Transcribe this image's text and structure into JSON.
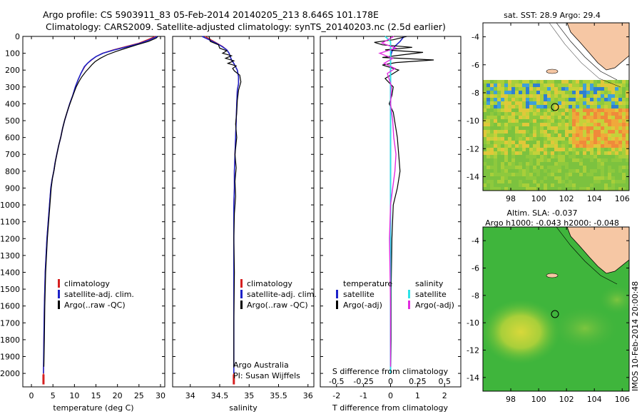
{
  "titles": {
    "line1": "Argo profile: CS 5903911_83 05-Feb-2014 20140205_213 8.646S 101.178E",
    "line2": "Climatology: CARS2009. Satellite-adjusted climatology: synTS_20140203.nc (2.5d earlier)"
  },
  "colors": {
    "climatology": "#d62020",
    "satellite": "#1d22c8",
    "argo": "#000000",
    "sat_salinity": "#2de3e8",
    "argo_salinity": "#e22ce0",
    "land": "#f6c7a4",
    "ocean_bg": "#3fb53c"
  },
  "chart_data": [
    {
      "type": "line",
      "panel": "temperature",
      "xlabel": "temperature (deg C)",
      "xlim": [
        -2,
        31
      ],
      "ylim": [
        0,
        2080
      ],
      "xticks": [
        0,
        5,
        10,
        15,
        20,
        25,
        30
      ],
      "yticks": [
        0,
        100,
        200,
        300,
        400,
        500,
        600,
        700,
        800,
        900,
        1000,
        1100,
        1200,
        1300,
        1400,
        1500,
        1600,
        1700,
        1800,
        1900,
        2000
      ],
      "legend": [
        "climatology",
        "satellite-adj. clim.",
        "Argo(..raw -QC)"
      ],
      "series": [
        {
          "name": "climatology",
          "x": [
            28.8,
            27,
            25,
            22,
            19,
            16.5,
            15,
            14,
            13,
            12.4,
            11.5,
            10.8,
            10.2,
            9.6,
            8.9,
            8.3,
            7.7,
            7.2,
            6.8,
            6.3,
            5.9,
            5.5,
            5.2,
            4.8,
            4.5,
            4.2,
            3.9,
            3.6,
            3.4,
            3.2,
            3.0,
            2.9,
            2.8
          ],
          "y": [
            0,
            20,
            40,
            60,
            80,
            100,
            120,
            140,
            160,
            180,
            220,
            260,
            300,
            350,
            400,
            450,
            500,
            550,
            600,
            650,
            700,
            750,
            800,
            850,
            900,
            1000,
            1100,
            1200,
            1300,
            1400,
            1600,
            1800,
            2040
          ]
        },
        {
          "name": "satellite-adj. clim.",
          "x": [
            29.3,
            27.5,
            25.4,
            22.5,
            19.3,
            16.6,
            15,
            13.9,
            13,
            12.3,
            11.5,
            10.8,
            10.2,
            9.6,
            8.9,
            8.3,
            7.7,
            7.2,
            6.8,
            6.3,
            5.9,
            5.5,
            5.2,
            4.8,
            4.5,
            4.2,
            3.9,
            3.6,
            3.4,
            3.2,
            3.0,
            2.9,
            2.8
          ],
          "y": [
            0,
            20,
            40,
            60,
            80,
            100,
            120,
            140,
            160,
            180,
            220,
            260,
            300,
            350,
            400,
            450,
            500,
            550,
            600,
            650,
            700,
            750,
            800,
            850,
            900,
            1000,
            1100,
            1200,
            1300,
            1400,
            1600,
            1800,
            2000
          ]
        },
        {
          "name": "Argo",
          "x": [
            29.4,
            29.0,
            27.2,
            24.5,
            22.0,
            19.6,
            17.5,
            16,
            14.8,
            14.0,
            13.3,
            12.6,
            11.7,
            11.0,
            10.4,
            9.8,
            9.1,
            8.4,
            7.8,
            7.3,
            6.9,
            6.4,
            6.0,
            5.6,
            5.3,
            4.9,
            4.6,
            4.3,
            4.0,
            3.7,
            3.5,
            3.3,
            3.1,
            3.0,
            2.9
          ],
          "y": [
            0,
            10,
            30,
            50,
            70,
            90,
            110,
            130,
            150,
            170,
            190,
            210,
            240,
            270,
            300,
            340,
            390,
            440,
            490,
            540,
            590,
            640,
            690,
            740,
            790,
            840,
            900,
            1000,
            1100,
            1200,
            1300,
            1400,
            1600,
            1800,
            1960
          ]
        }
      ]
    },
    {
      "type": "line",
      "panel": "salinity",
      "xlabel": "salinity",
      "xlim": [
        33.7,
        36.1
      ],
      "ylim": [
        0,
        2080
      ],
      "xticks": [
        34,
        34.5,
        35,
        35.5,
        36
      ],
      "legend": [
        "climatology",
        "satellite-adj. clim.",
        "Argo(..raw -QC)"
      ],
      "annotations": [
        "Argo Australia",
        "PI: Susan Wijffels"
      ],
      "series": [
        {
          "name": "climatology",
          "x": [
            34.25,
            34.35,
            34.45,
            34.55,
            34.62,
            34.66,
            34.68,
            34.7,
            34.74,
            34.8,
            34.82,
            34.82,
            34.8,
            34.79,
            34.78,
            34.77,
            34.76,
            34.75,
            34.75,
            34.74,
            34.74,
            34.74,
            34.74,
            34.74,
            34.74
          ],
          "y": [
            0,
            20,
            40,
            60,
            80,
            100,
            120,
            140,
            160,
            200,
            240,
            280,
            320,
            400,
            500,
            600,
            700,
            800,
            900,
            1000,
            1200,
            1400,
            1600,
            1800,
            2040
          ]
        },
        {
          "name": "satellite-adj. clim.",
          "x": [
            34.2,
            34.32,
            34.44,
            34.54,
            34.62,
            34.66,
            34.68,
            34.7,
            34.74,
            34.8,
            34.82,
            34.82,
            34.8,
            34.79,
            34.78,
            34.77,
            34.76,
            34.75,
            34.75,
            34.74,
            34.74,
            34.74,
            34.74,
            34.74,
            34.74
          ],
          "y": [
            0,
            20,
            40,
            60,
            80,
            100,
            120,
            140,
            160,
            200,
            240,
            280,
            320,
            400,
            500,
            600,
            700,
            800,
            900,
            1000,
            1200,
            1400,
            1600,
            1800,
            2000
          ]
        },
        {
          "name": "Argo",
          "x": [
            34.32,
            34.34,
            34.48,
            34.5,
            34.62,
            34.55,
            34.7,
            34.6,
            34.74,
            34.64,
            34.78,
            34.72,
            34.75,
            34.84,
            34.86,
            34.82,
            34.8,
            34.79,
            34.77,
            34.79,
            34.76,
            34.78,
            34.76,
            34.77,
            34.75,
            34.74,
            34.75,
            34.74,
            34.74
          ],
          "y": [
            0,
            30,
            50,
            70,
            85,
            100,
            115,
            130,
            145,
            160,
            175,
            190,
            205,
            230,
            270,
            320,
            380,
            450,
            520,
            600,
            700,
            780,
            860,
            950,
            1050,
            1200,
            1400,
            1700,
            1960
          ]
        }
      ]
    },
    {
      "type": "line",
      "panel": "difference",
      "xlabel": "T difference from climatology",
      "xlabel_top": "S difference from climatology",
      "xlim": [
        -2.6,
        2.6
      ],
      "ylim": [
        0,
        2080
      ],
      "xticks": [
        -2,
        -1,
        0,
        1,
        2
      ],
      "xticks_s": [
        "-0.5",
        "-0.25",
        "0",
        "0.25",
        "0.5"
      ],
      "legend_left": [
        "temperature",
        "satellite",
        "Argo(-adj)"
      ],
      "legend_right": [
        "salinity",
        "satellite",
        "Argo(-adj)"
      ],
      "series": [
        {
          "name": "T satellite",
          "x": [
            0.5,
            0.35,
            0.15,
            0.05,
            0,
            0,
            0,
            0,
            0,
            0,
            0,
            0
          ],
          "y": [
            0,
            30,
            60,
            90,
            120,
            200,
            400,
            800,
            1200,
            1600,
            1800,
            2000
          ]
        },
        {
          "name": "T Argo",
          "x": [
            0.6,
            0.1,
            -0.6,
            -0.3,
            0.8,
            -0.2,
            1.2,
            0.4,
            -0.3,
            1.6,
            0.2,
            -0.3,
            0.3,
            -0.2,
            0.1,
            0.05,
            -0.05,
            0.1,
            0.15,
            0.2,
            0.25,
            0.3,
            0.35,
            0.25,
            0.1,
            0.05,
            0.02,
            0.02,
            0.01
          ],
          "y": [
            0,
            20,
            35,
            50,
            65,
            80,
            95,
            110,
            125,
            140,
            155,
            170,
            200,
            250,
            300,
            350,
            400,
            450,
            500,
            550,
            600,
            700,
            800,
            900,
            1000,
            1200,
            1500,
            1800,
            1960
          ]
        },
        {
          "name": "S satellite",
          "x": [
            -0.05,
            0,
            0,
            0,
            0,
            0,
            0,
            0,
            0
          ],
          "y": [
            0,
            30,
            60,
            100,
            200,
            600,
            1200,
            1800,
            2000
          ]
        },
        {
          "name": "S Argo",
          "x": [
            0.03,
            -0.08,
            0.05,
            -0.1,
            0.02,
            -0.06,
            0.04,
            -0.03,
            0.01,
            0,
            0.02,
            0.03,
            0.05,
            0.04,
            0.02,
            0,
            -0.01,
            0,
            0
          ],
          "y": [
            0,
            40,
            70,
            100,
            130,
            160,
            190,
            220,
            300,
            400,
            500,
            600,
            700,
            800,
            900,
            1000,
            1200,
            1600,
            1960
          ]
        }
      ]
    },
    {
      "type": "heatmap",
      "panel": "sst-map",
      "title": "sat. SST: 28.9 Argo: 29.4",
      "xticks": [
        98,
        100,
        102,
        104,
        106
      ],
      "yticks": [
        -4,
        -6,
        -8,
        -10,
        -12,
        -14
      ],
      "xlim": [
        96,
        106.5
      ],
      "ylim": [
        -15,
        -3
      ],
      "argo_position": {
        "lon": 101.178,
        "lat": -8.646
      }
    },
    {
      "type": "heatmap",
      "panel": "sla-map",
      "title_line1": "Altim. SLA: -0.037",
      "title_line2": "Argo h1000: -0.043 h2000: -0.048",
      "xticks": [
        98,
        100,
        102,
        104,
        106
      ],
      "yticks": [
        -4,
        -6,
        -8,
        -10,
        -12,
        -14
      ],
      "xlim": [
        96,
        106.5
      ],
      "ylim": [
        -15,
        -3
      ],
      "argo_position": {
        "lon": 101.178,
        "lat": -8.646
      }
    }
  ],
  "watermark": "IMOS 10-Feb-2014 20:00:48"
}
